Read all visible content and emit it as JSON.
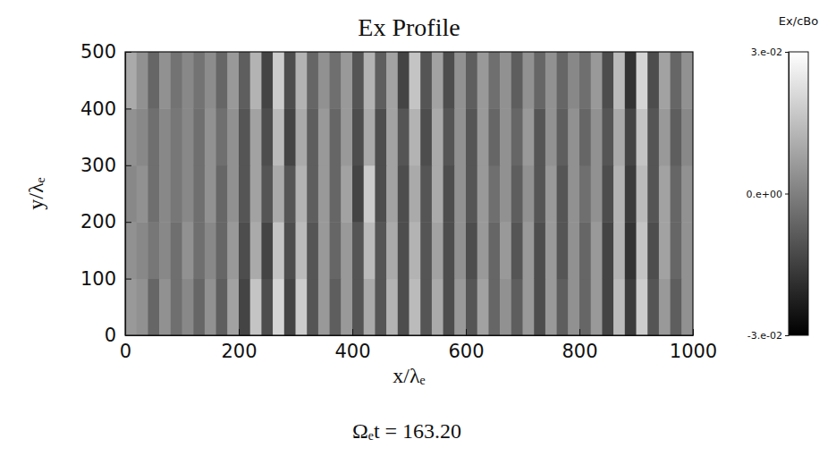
{
  "chart_data": {
    "type": "heatmap",
    "title": "Ex Profile",
    "x_label": "x/λₑ",
    "y_label": "y/λₑ",
    "annotation": "Ωₑt = 163.20",
    "xlim": [
      0,
      1000
    ],
    "ylim": [
      0,
      500
    ],
    "xticks": [
      0,
      200,
      400,
      600,
      800,
      1000
    ],
    "yticks": [
      0,
      100,
      200,
      300,
      400,
      500
    ],
    "colorbar": {
      "label": "Ex/cBo",
      "range": [
        -0.03,
        0.03
      ],
      "ticks": [
        {
          "value": 0.03,
          "label": "3.e-02"
        },
        {
          "value": 0,
          "label": "0.e+00"
        },
        {
          "value": -0.03,
          "label": "-3.e-02"
        }
      ]
    },
    "z": [
      [
        0.006,
        0.004,
        -0.006,
        0.004,
        -0.004,
        0.002,
        -0.006,
        0.004,
        -0.008,
        0.008,
        -0.014,
        0.016,
        -0.012,
        0.02,
        -0.014,
        0.018,
        -0.01,
        0.006,
        -0.008,
        0.006,
        -0.01,
        0.01,
        -0.01,
        0.012,
        -0.012,
        0.014,
        -0.01,
        0.01,
        -0.012,
        0.006,
        -0.01,
        0.008,
        -0.006,
        0.004,
        -0.008,
        0.006,
        -0.012,
        0.006,
        -0.008,
        0.004,
        -0.006,
        0.006,
        -0.014,
        0.014,
        -0.016,
        0.018,
        -0.01,
        0.006,
        -0.008,
        0.004
      ],
      [
        0.004,
        0.002,
        -0.002,
        0.002,
        -0.004,
        0.004,
        -0.004,
        0.002,
        -0.006,
        0.006,
        -0.012,
        0.01,
        -0.014,
        0.016,
        -0.012,
        0.014,
        -0.01,
        0.006,
        -0.006,
        0.006,
        -0.01,
        0.014,
        -0.01,
        0.01,
        -0.012,
        0.012,
        -0.01,
        0.008,
        -0.012,
        0.004,
        -0.012,
        0.006,
        -0.006,
        0.006,
        -0.01,
        0.006,
        -0.012,
        0.006,
        -0.01,
        0.004,
        -0.006,
        0.006,
        -0.014,
        0.012,
        -0.018,
        0.016,
        -0.012,
        0.008,
        -0.006,
        0.004
      ],
      [
        0.002,
        0.004,
        -0.004,
        0.002,
        -0.002,
        0.002,
        -0.004,
        0.004,
        -0.006,
        0.004,
        -0.01,
        0.008,
        -0.01,
        0.01,
        -0.01,
        0.012,
        -0.008,
        0.006,
        -0.006,
        0.008,
        -0.014,
        0.018,
        -0.012,
        0.008,
        -0.012,
        0.01,
        -0.01,
        0.01,
        -0.012,
        0.004,
        -0.01,
        0.006,
        -0.004,
        0.004,
        -0.008,
        0.004,
        -0.01,
        0.006,
        -0.01,
        0.004,
        -0.004,
        0.004,
        -0.012,
        0.012,
        -0.016,
        0.014,
        -0.01,
        0.008,
        -0.006,
        0.004
      ],
      [
        0.004,
        0.002,
        -0.004,
        0.002,
        -0.002,
        0.002,
        -0.004,
        0.004,
        -0.004,
        0.004,
        -0.01,
        0.008,
        -0.012,
        0.014,
        -0.014,
        0.01,
        -0.008,
        0.006,
        -0.006,
        0.006,
        -0.012,
        0.01,
        -0.012,
        0.008,
        -0.01,
        0.012,
        -0.012,
        0.01,
        -0.01,
        0.004,
        -0.01,
        0.006,
        -0.006,
        0.004,
        -0.006,
        0.006,
        -0.01,
        0.004,
        -0.008,
        0.004,
        -0.006,
        0.004,
        -0.01,
        0.01,
        -0.014,
        0.016,
        -0.01,
        0.006,
        -0.008,
        0.002
      ],
      [
        0.01,
        0.004,
        -0.006,
        0.004,
        -0.003,
        0.002,
        -0.003,
        0.003,
        -0.006,
        0.006,
        -0.008,
        0.012,
        -0.014,
        0.018,
        -0.012,
        0.012,
        -0.006,
        0.004,
        -0.004,
        0.006,
        -0.01,
        0.012,
        -0.008,
        0.008,
        -0.014,
        0.016,
        -0.01,
        0.008,
        -0.012,
        0.004,
        -0.008,
        0.006,
        -0.004,
        0.004,
        -0.008,
        0.004,
        -0.006,
        0.004,
        -0.006,
        0.002,
        -0.004,
        0.006,
        -0.012,
        0.014,
        -0.018,
        0.02,
        -0.012,
        0.008,
        -0.006,
        0.004
      ]
    ]
  }
}
